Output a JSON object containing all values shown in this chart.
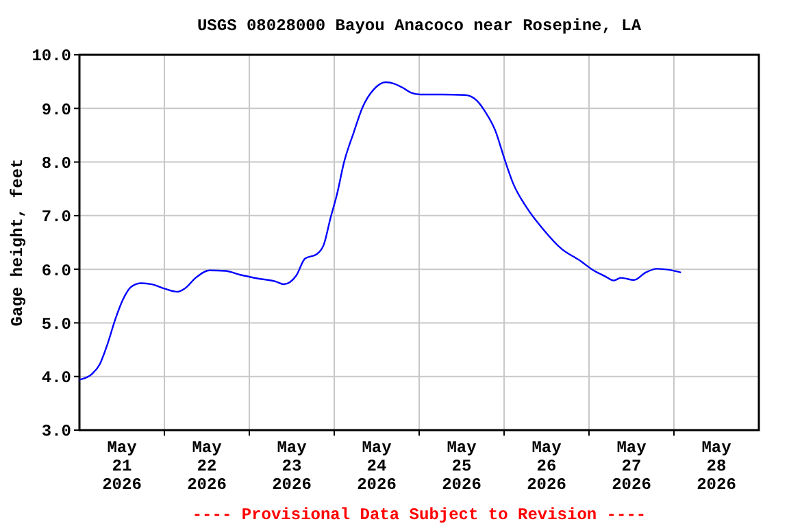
{
  "chart_data": {
    "type": "line",
    "title": "USGS 08028000 Bayou Anacoco near Rosepine, LA",
    "ylabel": "Gage height, feet",
    "annotations": [
      "---- Provisional Data Subject to Revision ----"
    ],
    "x": [
      "2026-05-21T00:00",
      "2026-05-21T03:45",
      "2026-05-21T05:45",
      "2026-05-21T07:45",
      "2026-05-21T10:15",
      "2026-05-21T12:15",
      "2026-05-21T14:45",
      "2026-05-21T17:30",
      "2026-05-21T20:30",
      "2026-05-22T00:00",
      "2026-05-22T03:45",
      "2026-05-22T05:45",
      "2026-05-22T09:00",
      "2026-05-22T12:45",
      "2026-05-22T17:15",
      "2026-05-22T21:15",
      "2026-05-23T02:15",
      "2026-05-23T07:30",
      "2026-05-23T09:45",
      "2026-05-23T13:15",
      "2026-05-23T15:45",
      "2026-05-23T19:00",
      "2026-05-23T21:00",
      "2026-05-23T23:00",
      "2026-05-24T00:45",
      "2026-05-24T02:45",
      "2026-05-24T05:30",
      "2026-05-24T08:00",
      "2026-05-24T11:15",
      "2026-05-24T14:30",
      "2026-05-24T17:00",
      "2026-05-24T19:30",
      "2026-05-24T21:30",
      "2026-05-25T00:15",
      "2026-05-25T06:30",
      "2026-05-25T13:00",
      "2026-05-25T16:15",
      "2026-05-25T18:45",
      "2026-05-25T21:30",
      "2026-05-26T00:00",
      "2026-05-26T02:30",
      "2026-05-26T06:30",
      "2026-05-26T11:00",
      "2026-05-26T16:15",
      "2026-05-26T21:15",
      "2026-05-27T01:15",
      "2026-05-27T04:30",
      "2026-05-27T07:00",
      "2026-05-27T09:00",
      "2026-05-27T12:45",
      "2026-05-27T16:00",
      "2026-05-27T19:15",
      "2026-05-27T22:30",
      "2026-05-28T02:00"
    ],
    "series": [
      {
        "color": "#0000ff",
        "values": [
          3.94,
          4.06,
          4.23,
          4.57,
          5.09,
          5.43,
          5.68,
          5.74,
          5.72,
          5.64,
          5.58,
          5.64,
          5.85,
          5.98,
          5.97,
          5.9,
          5.83,
          5.77,
          5.72,
          5.88,
          6.2,
          6.28,
          6.45,
          6.97,
          7.39,
          7.99,
          8.55,
          9.02,
          9.36,
          9.49,
          9.46,
          9.38,
          9.3,
          9.26,
          9.26,
          9.25,
          9.15,
          8.93,
          8.59,
          8.08,
          7.61,
          7.14,
          6.75,
          6.38,
          6.17,
          5.98,
          5.87,
          5.79,
          5.84,
          5.8,
          5.94,
          6.01,
          5.99,
          5.94
        ]
      }
    ],
    "xlim": [
      "2026-05-21T00:00",
      "2026-05-29T00:00"
    ],
    "xticks": [
      {
        "value": "2026-05-21T12:00",
        "label": "May\n21\n2026"
      },
      {
        "value": "2026-05-22T00:00",
        "label": null
      },
      {
        "value": "2026-05-22T12:00",
        "label": "May\n22\n2026"
      },
      {
        "value": "2026-05-23T00:00",
        "label": null
      },
      {
        "value": "2026-05-23T12:00",
        "label": "May\n23\n2026"
      },
      {
        "value": "2026-05-24T00:00",
        "label": null
      },
      {
        "value": "2026-05-24T12:00",
        "label": "May\n24\n2026"
      },
      {
        "value": "2026-05-25T00:00",
        "label": null
      },
      {
        "value": "2026-05-25T12:00",
        "label": "May\n25\n2026"
      },
      {
        "value": "2026-05-26T00:00",
        "label": null
      },
      {
        "value": "2026-05-26T12:00",
        "label": "May\n26\n2026"
      },
      {
        "value": "2026-05-27T00:00",
        "label": null
      },
      {
        "value": "2026-05-27T12:00",
        "label": "May\n27\n2026"
      },
      {
        "value": "2026-05-28T00:00",
        "label": null
      },
      {
        "value": "2026-05-28T12:00",
        "label": "May\n28\n2026"
      }
    ],
    "ylim": [
      3,
      10
    ],
    "yticks": [
      {
        "value": 3,
        "label": "3.0"
      },
      {
        "value": 4,
        "label": "4.0"
      },
      {
        "value": 5,
        "label": "5.0"
      },
      {
        "value": 6,
        "label": "6.0"
      },
      {
        "value": 7,
        "label": "7.0"
      },
      {
        "value": 8,
        "label": "8.0"
      },
      {
        "value": 9,
        "label": "9.0"
      },
      {
        "value": 10,
        "label": "10.0"
      }
    ],
    "grid": true,
    "marker": "none",
    "line_style": "solid"
  }
}
